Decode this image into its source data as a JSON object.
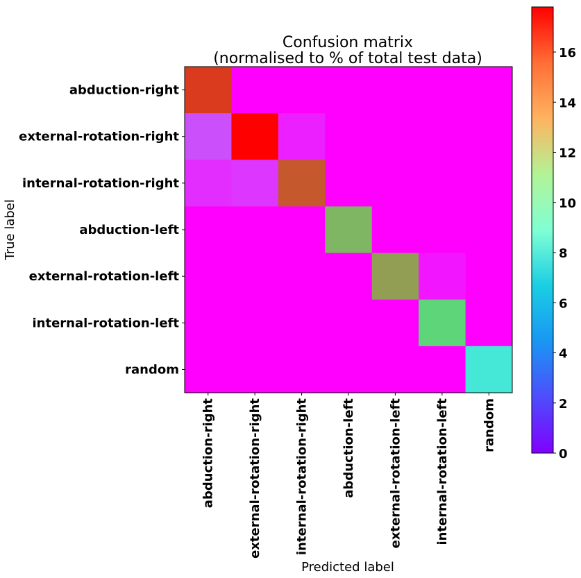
{
  "chart_data": {
    "type": "heatmap",
    "title": "Confusion matrix\n(normalised to % of total test data)",
    "title_lines": [
      "Confusion matrix",
      "(normalised to % of total test data)"
    ],
    "xlabel": "Predicted label",
    "ylabel": "True label",
    "x_categories": [
      "abduction-right",
      "external-rotation-right",
      "internal-rotation-right",
      "abduction-left",
      "external-rotation-left",
      "internal-rotation-left",
      "random"
    ],
    "y_categories": [
      "abduction-right",
      "external-rotation-right",
      "internal-rotation-right",
      "abduction-left",
      "external-rotation-left",
      "internal-rotation-left",
      "random"
    ],
    "values": [
      [
        16.5,
        0,
        0,
        0,
        0,
        0,
        0
      ],
      [
        1.8,
        17.8,
        0.7,
        0,
        0,
        0,
        0
      ],
      [
        1.0,
        1.2,
        15.8,
        0,
        0,
        0,
        0
      ],
      [
        0,
        0,
        0,
        13.3,
        0,
        0,
        0
      ],
      [
        0,
        0,
        0,
        0,
        14.0,
        0.5,
        0
      ],
      [
        0,
        0,
        0,
        0,
        0,
        12.2,
        0
      ],
      [
        0,
        0,
        0,
        0,
        0,
        0,
        6.5
      ]
    ],
    "colormap": "rainbow",
    "colorbar": {
      "range": [
        0,
        17.8
      ],
      "ticks": [
        "0",
        "2",
        "4",
        "6",
        "8",
        "10",
        "12",
        "14",
        "16"
      ]
    },
    "grid": false
  }
}
